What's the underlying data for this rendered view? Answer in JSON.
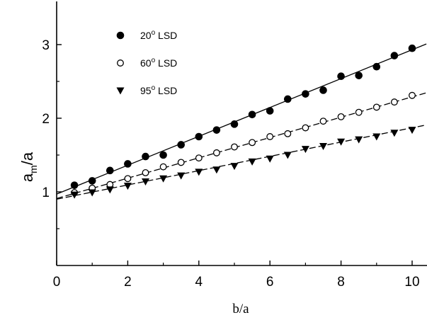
{
  "chart_data": {
    "type": "scatter",
    "xlabel": "b/a",
    "ylabel": {
      "main": "a",
      "subscript": "m",
      "suffix": "/a"
    },
    "xlim": [
      0,
      10.4
    ],
    "ylim": [
      0,
      3.5
    ],
    "xticks": [
      0,
      2,
      4,
      6,
      8,
      10
    ],
    "yticks": [
      1,
      2,
      3
    ],
    "xtick_labels": [
      "0",
      "2",
      "4",
      "6",
      "8",
      "10"
    ],
    "ytick_labels": [
      "1",
      "2",
      "3"
    ],
    "grid": false,
    "legend_position": "top-left",
    "series": [
      {
        "name": "20° LSD",
        "label_prefix": "20",
        "label_suffix": " LSD",
        "marker": "filled-circle",
        "line_style": "solid",
        "fit": {
          "intercept": 0.97,
          "slope": 0.196
        },
        "x": [
          0.5,
          1,
          1.5,
          2,
          2.5,
          3,
          3.5,
          4,
          4.5,
          5,
          5.5,
          6,
          6.5,
          7,
          7.5,
          8,
          8.5,
          9,
          9.5,
          10
        ],
        "y": [
          1.09,
          1.15,
          1.29,
          1.38,
          1.48,
          1.5,
          1.64,
          1.75,
          1.84,
          1.92,
          2.05,
          2.1,
          2.26,
          2.33,
          2.38,
          2.57,
          2.58,
          2.7,
          2.85,
          2.95
        ]
      },
      {
        "name": "60° LSD",
        "label_prefix": "60",
        "label_suffix": " LSD",
        "marker": "open-circle",
        "line_style": "dashed",
        "fit": {
          "intercept": 0.91,
          "slope": 0.138
        },
        "x": [
          0.5,
          1,
          1.5,
          2,
          2.5,
          3,
          3.5,
          4,
          4.5,
          5,
          5.5,
          6,
          6.5,
          7,
          7.5,
          8,
          8.5,
          9,
          9.5,
          10
        ],
        "y": [
          0.99,
          1.05,
          1.1,
          1.18,
          1.26,
          1.34,
          1.4,
          1.46,
          1.53,
          1.61,
          1.67,
          1.75,
          1.79,
          1.87,
          1.96,
          2.02,
          2.08,
          2.15,
          2.22,
          2.31
        ]
      },
      {
        "name": "95° LSD",
        "label_prefix": "95",
        "label_suffix": " LSD",
        "marker": "filled-triangle-down",
        "line_style": "dashed",
        "fit": {
          "intercept": 0.9,
          "slope": 0.097
        },
        "x": [
          0.5,
          1,
          1.5,
          2,
          2.5,
          3,
          3.5,
          4,
          4.5,
          5,
          5.5,
          6,
          6.5,
          7,
          7.5,
          8,
          8.5,
          9,
          9.5,
          10
        ],
        "y": [
          0.96,
          0.99,
          1.03,
          1.08,
          1.14,
          1.18,
          1.22,
          1.27,
          1.3,
          1.35,
          1.41,
          1.45,
          1.5,
          1.58,
          1.62,
          1.68,
          1.71,
          1.75,
          1.8,
          1.84
        ]
      }
    ]
  }
}
